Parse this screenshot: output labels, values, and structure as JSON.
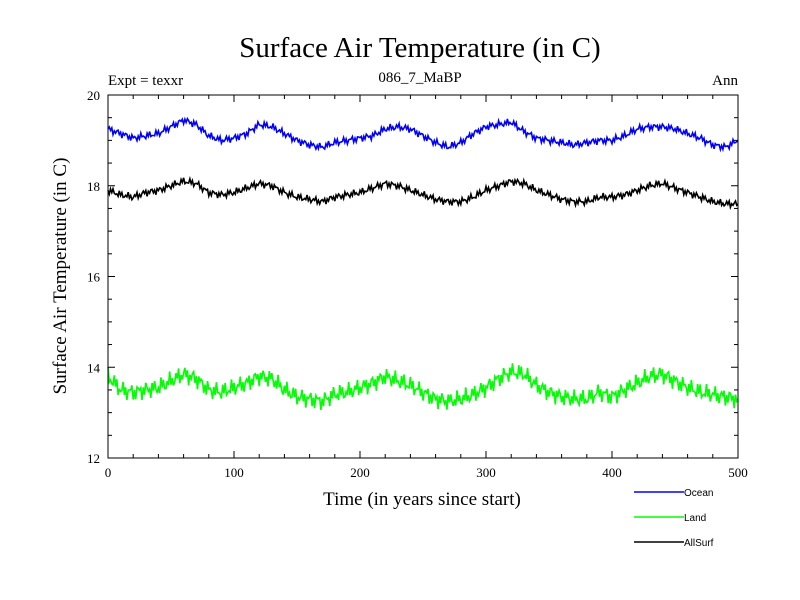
{
  "chart_data": {
    "type": "line",
    "title": "Surface Air Temperature (in C)",
    "subtitle_left": "Expt = texxr",
    "subtitle_center": "086_7_MaBP",
    "subtitle_right": "Ann",
    "xlabel": "Time (in years since start)",
    "ylabel": "Surface Air Temperature (in C)",
    "xlim": [
      0,
      500
    ],
    "ylim": [
      12,
      20
    ],
    "xticks": [
      0,
      100,
      200,
      300,
      400,
      500
    ],
    "yticks": [
      12,
      14,
      16,
      18,
      20
    ],
    "xtick_labels": [
      "0",
      "100",
      "200",
      "300",
      "400",
      "500"
    ],
    "ytick_labels": [
      "12",
      "14",
      "16",
      "18",
      "20"
    ],
    "grid": false,
    "legend_position": "bottom-right outside",
    "series": [
      {
        "name": "Ocean",
        "color": "#0000ff",
        "x_step": 10,
        "values": [
          19.25,
          19.15,
          19.05,
          19.1,
          19.15,
          19.3,
          19.45,
          19.35,
          19.1,
          19.0,
          19.05,
          19.15,
          19.35,
          19.3,
          19.15,
          19.0,
          18.9,
          18.85,
          18.95,
          19.0,
          19.05,
          19.1,
          19.25,
          19.3,
          19.25,
          19.1,
          18.95,
          18.85,
          18.95,
          19.15,
          19.3,
          19.35,
          19.4,
          19.2,
          19.05,
          19.0,
          18.95,
          18.9,
          18.95,
          19.0,
          19.0,
          19.1,
          19.25,
          19.3,
          19.3,
          19.25,
          19.15,
          19.05,
          18.9,
          18.85,
          19.0
        ]
      },
      {
        "name": "Land",
        "color": "#00ff00",
        "x_step": 10,
        "values": [
          13.8,
          13.5,
          13.45,
          13.5,
          13.55,
          13.7,
          13.85,
          13.75,
          13.5,
          13.45,
          13.55,
          13.65,
          13.8,
          13.75,
          13.5,
          13.35,
          13.3,
          13.25,
          13.4,
          13.45,
          13.55,
          13.65,
          13.8,
          13.7,
          13.6,
          13.45,
          13.3,
          13.25,
          13.3,
          13.4,
          13.55,
          13.75,
          13.9,
          13.85,
          13.6,
          13.45,
          13.35,
          13.3,
          13.3,
          13.45,
          13.35,
          13.5,
          13.65,
          13.8,
          13.85,
          13.7,
          13.55,
          13.45,
          13.4,
          13.35,
          13.3
        ]
      },
      {
        "name": "AllSurf",
        "color": "#000000",
        "x_step": 10,
        "values": [
          17.9,
          17.8,
          17.75,
          17.85,
          17.9,
          18.0,
          18.1,
          18.05,
          17.85,
          17.8,
          17.85,
          17.95,
          18.05,
          18.0,
          17.85,
          17.75,
          17.7,
          17.65,
          17.75,
          17.8,
          17.85,
          17.95,
          18.05,
          18.0,
          17.9,
          17.8,
          17.7,
          17.65,
          17.65,
          17.75,
          17.9,
          18.0,
          18.1,
          18.05,
          17.9,
          17.8,
          17.7,
          17.65,
          17.65,
          17.75,
          17.75,
          17.8,
          17.9,
          18.0,
          18.05,
          17.95,
          17.85,
          17.75,
          17.65,
          17.6,
          17.6
        ]
      }
    ]
  }
}
